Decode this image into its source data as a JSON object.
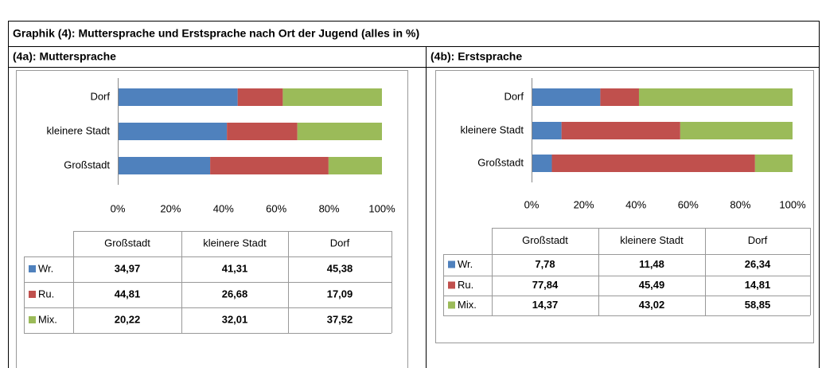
{
  "title": "Graphik (4): Muttersprache und Erstsprache nach Ort der Jugend (alles in %)",
  "chart_data": [
    {
      "type": "bar",
      "orientation": "horizontal",
      "stacked": true,
      "title": "(4a): Muttersprache",
      "categories": [
        "Großstadt",
        "kleinere Stadt",
        "Dorf"
      ],
      "series": [
        {
          "name": "Wr.",
          "color": "#4f81bd",
          "values": [
            34.97,
            41.31,
            45.38
          ],
          "value_labels": [
            "34,97",
            "41,31",
            "45,38"
          ]
        },
        {
          "name": "Ru.",
          "color": "#c0504d",
          "values": [
            44.81,
            26.68,
            17.09
          ],
          "value_labels": [
            "44,81",
            "26,68",
            "17,09"
          ]
        },
        {
          "name": "Mix.",
          "color": "#9bbb59",
          "values": [
            20.22,
            32.01,
            37.52
          ],
          "value_labels": [
            "20,22",
            "32,01",
            "37,52"
          ]
        }
      ],
      "xlim": [
        0,
        100
      ],
      "xticks": [
        {
          "value": 0,
          "label": "0%"
        },
        {
          "value": 20,
          "label": "20%"
        },
        {
          "value": 40,
          "label": "40%"
        },
        {
          "value": 60,
          "label": "60%"
        },
        {
          "value": 80,
          "label": "80%"
        },
        {
          "value": 100,
          "label": "100%"
        }
      ],
      "grid": false
    },
    {
      "type": "bar",
      "orientation": "horizontal",
      "stacked": true,
      "title": "(4b): Erstsprache",
      "categories": [
        "Großstadt",
        "kleinere Stadt",
        "Dorf"
      ],
      "series": [
        {
          "name": "Wr.",
          "color": "#4f81bd",
          "values": [
            7.78,
            11.48,
            26.34
          ],
          "value_labels": [
            "7,78",
            "11,48",
            "26,34"
          ]
        },
        {
          "name": "Ru.",
          "color": "#c0504d",
          "values": [
            77.84,
            45.49,
            14.81
          ],
          "value_labels": [
            "77,84",
            "45,49",
            "14,81"
          ]
        },
        {
          "name": "Mix.",
          "color": "#9bbb59",
          "values": [
            14.37,
            43.02,
            58.85
          ],
          "value_labels": [
            "14,37",
            "43,02",
            "58,85"
          ]
        }
      ],
      "xlim": [
        0,
        100
      ],
      "xticks": [
        {
          "value": 0,
          "label": "0%"
        },
        {
          "value": 20,
          "label": "20%"
        },
        {
          "value": 40,
          "label": "40%"
        },
        {
          "value": 60,
          "label": "60%"
        },
        {
          "value": 80,
          "label": "80%"
        },
        {
          "value": 100,
          "label": "100%"
        }
      ],
      "grid": false
    }
  ]
}
